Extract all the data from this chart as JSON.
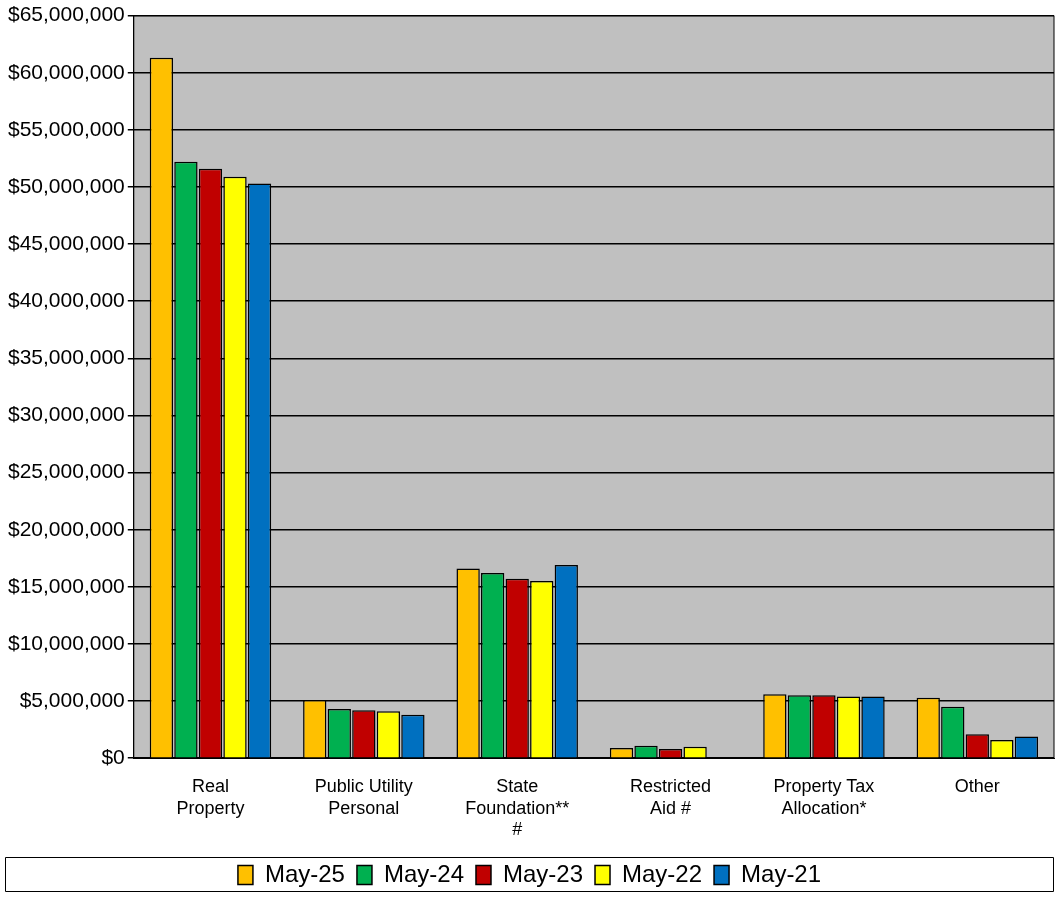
{
  "chart_data": {
    "type": "bar",
    "categories": [
      "Real\nProperty",
      "Public Utility\nPersonal",
      "State\nFoundation**\n#",
      "Restricted\nAid #",
      "Property Tax\nAllocation*",
      "Other"
    ],
    "series": [
      {
        "name": "May-25",
        "color": "#ffc000",
        "values": [
          61300000,
          5100000,
          16600000,
          900000,
          5600000,
          5300000
        ]
      },
      {
        "name": "May-24",
        "color": "#00b050",
        "values": [
          52200000,
          4300000,
          16200000,
          1100000,
          5500000,
          4500000
        ]
      },
      {
        "name": "May-23",
        "color": "#c00000",
        "values": [
          51600000,
          4200000,
          15700000,
          800000,
          5500000,
          2100000
        ]
      },
      {
        "name": "May-22",
        "color": "#ffff00",
        "values": [
          50900000,
          4100000,
          15500000,
          1000000,
          5400000,
          1600000
        ]
      },
      {
        "name": "May-21",
        "color": "#0070c0",
        "values": [
          50300000,
          3800000,
          16900000,
          0,
          5400000,
          1900000
        ]
      }
    ],
    "ylim": [
      0,
      65000000
    ],
    "yticks": [
      {
        "value": 0,
        "label": "$0"
      },
      {
        "value": 5000000,
        "label": "$5,000,000"
      },
      {
        "value": 10000000,
        "label": "$10,000,000"
      },
      {
        "value": 15000000,
        "label": "$15,000,000"
      },
      {
        "value": 20000000,
        "label": "$20,000,000"
      },
      {
        "value": 25000000,
        "label": "$25,000,000"
      },
      {
        "value": 30000000,
        "label": "$30,000,000"
      },
      {
        "value": 35000000,
        "label": "$35,000,000"
      },
      {
        "value": 40000000,
        "label": "$40,000,000"
      },
      {
        "value": 45000000,
        "label": "$45,000,000"
      },
      {
        "value": 50000000,
        "label": "$50,000,000"
      },
      {
        "value": 55000000,
        "label": "$55,000,000"
      },
      {
        "value": 60000000,
        "label": "$60,000,000"
      },
      {
        "value": 65000000,
        "label": "$65,000,000"
      }
    ],
    "grid": "y",
    "legend": "bottom"
  }
}
